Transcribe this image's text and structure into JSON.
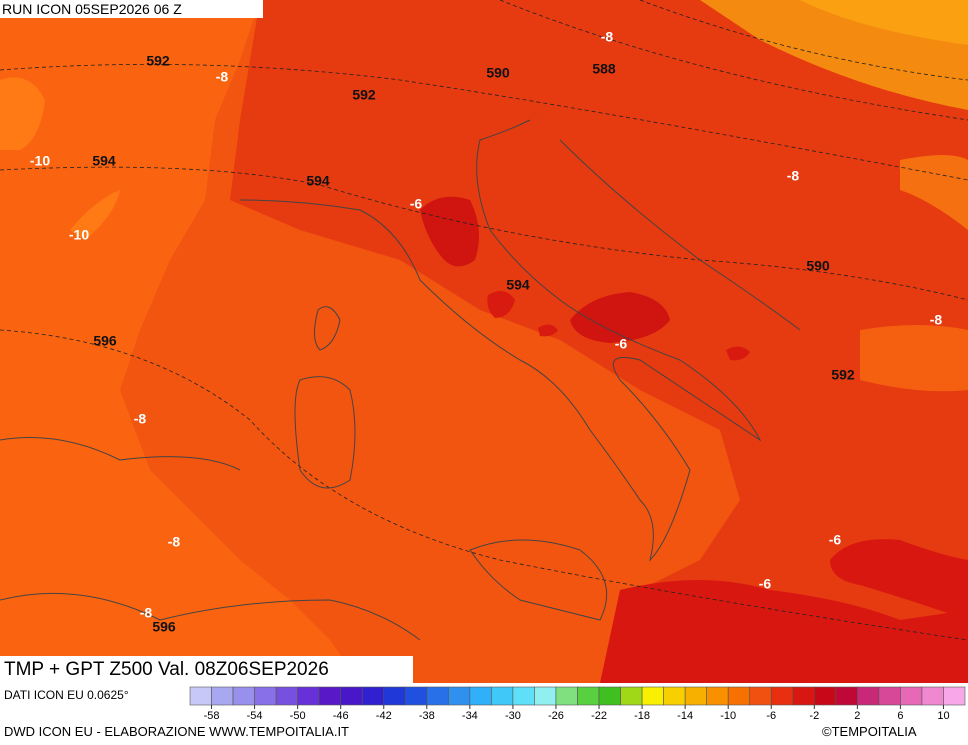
{
  "header": {
    "run": "RUN ICON 05SEP2026 06 Z"
  },
  "map": {
    "title": "TMP + GPT Z500 Val. 08Z06SEP2026",
    "labels": [
      "592",
      "-8",
      "592",
      "590",
      "588",
      "-8",
      "-10",
      "594",
      "594",
      "-6",
      "-8",
      "-10",
      "594",
      "590",
      "596",
      "-8",
      "-6",
      "592",
      "-8",
      "-8",
      "-6",
      "-6",
      "-8",
      "596"
    ]
  },
  "legend": {
    "source": "DATI ICON EU 0.0625°",
    "colors": [
      "#c8c8f8",
      "#a8a8f0",
      "#9890ec",
      "#8870e8",
      "#7850e0",
      "#6830d8",
      "#5818c8",
      "#4818c8",
      "#3020d0",
      "#2038d8",
      "#2050e0",
      "#2870e8",
      "#3090f0",
      "#30b0f8",
      "#40c8f8",
      "#60e0f8",
      "#90f0f0",
      "#80e080",
      "#58d040",
      "#40c020",
      "#a0d818",
      "#f8f000",
      "#f8d000",
      "#f8b000",
      "#f89000",
      "#f87000",
      "#f05010",
      "#e83010",
      "#d81810",
      "#c80818",
      "#c00838",
      "#c82878",
      "#d84898",
      "#e868b8",
      "#f088d0",
      "#f8a8e8"
    ],
    "ticks": [
      "-58",
      "-54",
      "-50",
      "-46",
      "-42",
      "-38",
      "-34",
      "-30",
      "-26",
      "-22",
      "-18",
      "-14",
      "-10",
      "-6",
      "-2",
      "2",
      "6",
      "10"
    ]
  },
  "footer": {
    "credit": "DWD ICON EU - ELABORAZIONE WWW.TEMPOITALIA.IT",
    "copyright": "©TEMPOITALIA"
  }
}
